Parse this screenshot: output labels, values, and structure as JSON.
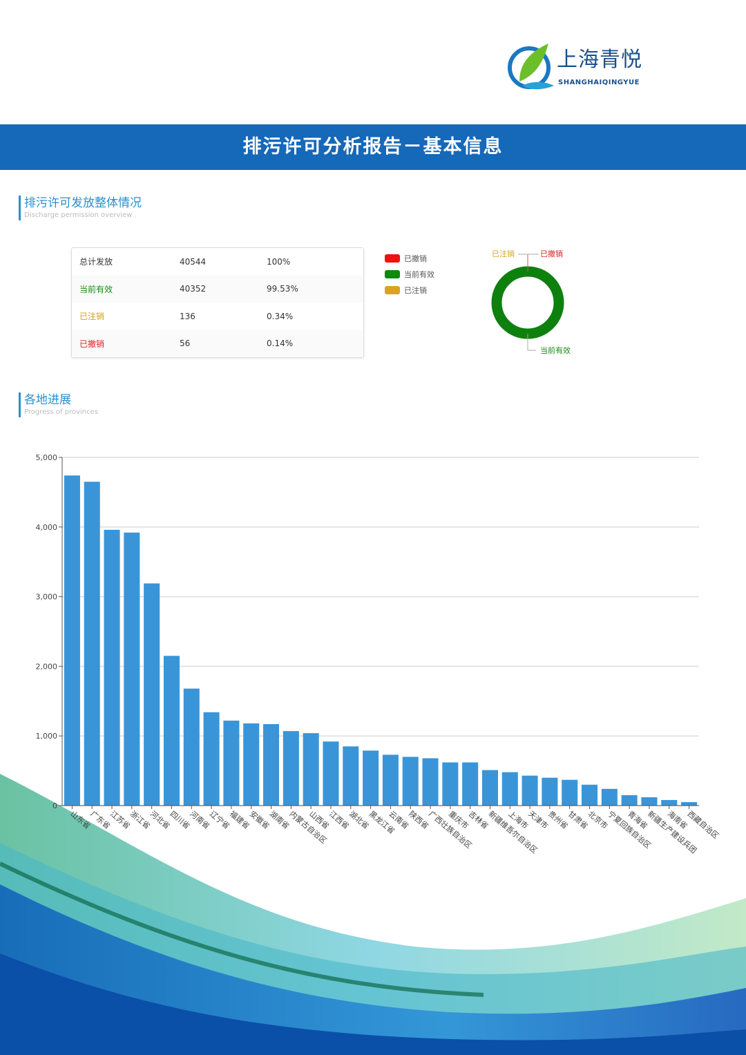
{
  "logo": {
    "cn": "上海青悦",
    "en": "SHANGHAIQINGYUE"
  },
  "banner": {
    "title": "排污许可分析报告－基本信息"
  },
  "section1": {
    "title": "排污许可发放整体情况",
    "subtitle": "Discharge permission overview"
  },
  "summary_table": [
    {
      "label": "总计发放",
      "count": "40544",
      "pct": "100%",
      "color": "#333333"
    },
    {
      "label": "当前有效",
      "count": "40352",
      "pct": "99.53%",
      "color": "#1a8a1a"
    },
    {
      "label": "已注销",
      "count": "136",
      "pct": "0.34%",
      "color": "#d4a017"
    },
    {
      "label": "已撤销",
      "count": "56",
      "pct": "0.14%",
      "color": "#e02020"
    }
  ],
  "legend": [
    {
      "label": "已撤销",
      "color": "#ee1111"
    },
    {
      "label": "当前有效",
      "color": "#0e8a0e"
    },
    {
      "label": "已注销",
      "color": "#d9a520"
    }
  ],
  "donut": {
    "labels": {
      "cancelled": "已注销",
      "revoked": "已撤销",
      "valid": "当前有效"
    },
    "values": {
      "valid": 40352,
      "cancelled": 136,
      "revoked": 56
    }
  },
  "section2": {
    "title": "各地进展",
    "subtitle": "Progress of provinces"
  },
  "chart_data": {
    "type": "bar",
    "title": "",
    "xlabel": "",
    "ylabel": "",
    "ylim": [
      0,
      5000
    ],
    "yticks": [
      0,
      1000,
      2000,
      3000,
      4000,
      5000
    ],
    "ytick_labels": [
      "0",
      "1,000",
      "2,000",
      "3,000",
      "4,000",
      "5,000"
    ],
    "grid": true,
    "color": "#3a95d8",
    "categories": [
      "山东省",
      "广东省",
      "江苏省",
      "浙江省",
      "河北省",
      "四川省",
      "河南省",
      "辽宁省",
      "福建省",
      "安徽省",
      "湖南省",
      "内蒙古自治区",
      "山西省",
      "江西省",
      "湖北省",
      "黑龙江省",
      "云南省",
      "陕西省",
      "广西壮族自治区",
      "重庆市",
      "吉林省",
      "新疆维吾尔自治区",
      "上海市",
      "天津市",
      "贵州省",
      "甘肃省",
      "北京市",
      "宁夏回族自治区",
      "青海省",
      "新疆生产建设兵团",
      "海南省",
      "西藏自治区"
    ],
    "values": [
      4740,
      4650,
      3960,
      3920,
      3190,
      2150,
      1680,
      1340,
      1220,
      1180,
      1170,
      1070,
      1040,
      920,
      850,
      790,
      730,
      700,
      680,
      620,
      620,
      510,
      480,
      430,
      400,
      370,
      300,
      240,
      150,
      120,
      80,
      50
    ]
  }
}
